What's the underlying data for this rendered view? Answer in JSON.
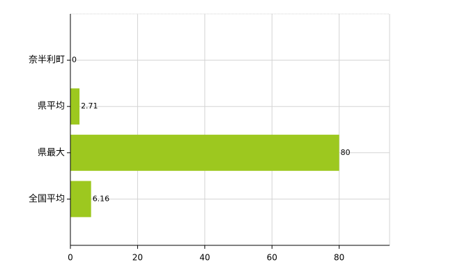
{
  "chart_data": {
    "type": "bar",
    "orientation": "horizontal",
    "categories": [
      "奈半利町",
      "県平均",
      "県最大",
      "全国平均"
    ],
    "values": [
      0,
      2.71,
      80,
      6.16
    ],
    "color": "#9dc81f",
    "xlim": [
      0,
      95
    ],
    "xticks": [
      0,
      20,
      40,
      60,
      80
    ],
    "grid": true
  }
}
